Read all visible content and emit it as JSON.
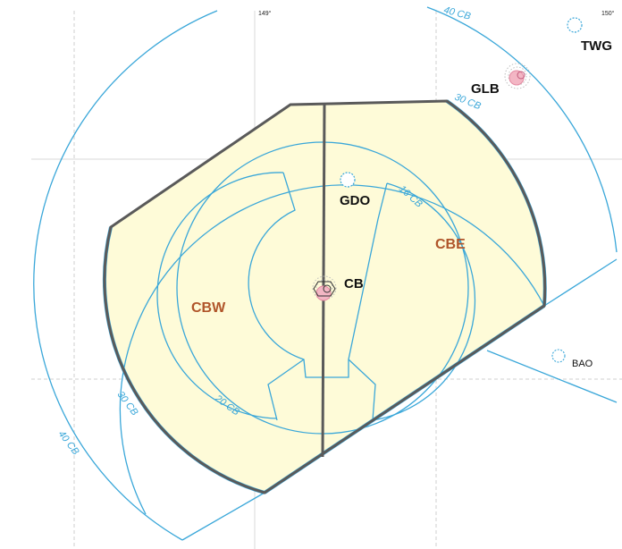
{
  "map": {
    "longitude_labels": [
      "149°",
      "150°"
    ],
    "sectors": [
      {
        "id": "CBW",
        "label": "CBW"
      },
      {
        "id": "CBE",
        "label": "CBE"
      }
    ],
    "navaids": [
      {
        "id": "CB",
        "label": "CB"
      },
      {
        "id": "GDO",
        "label": "GDO"
      },
      {
        "id": "GLB",
        "label": "GLB"
      },
      {
        "id": "TWG",
        "label": "TWG"
      },
      {
        "id": "BAO",
        "label": "BAO"
      }
    ],
    "ring_labels": [
      "16 CB",
      "20 CB",
      "30 CB",
      "30 CB",
      "40 CB",
      "40 CB"
    ],
    "colors": {
      "airspace_fill": "#fefbd8",
      "airspace_boundary": "#5a5a5a",
      "range_rings": "#3aa7d9",
      "sector_labels": "#b0552a",
      "navaid_marker": "#f3b6c4"
    }
  }
}
